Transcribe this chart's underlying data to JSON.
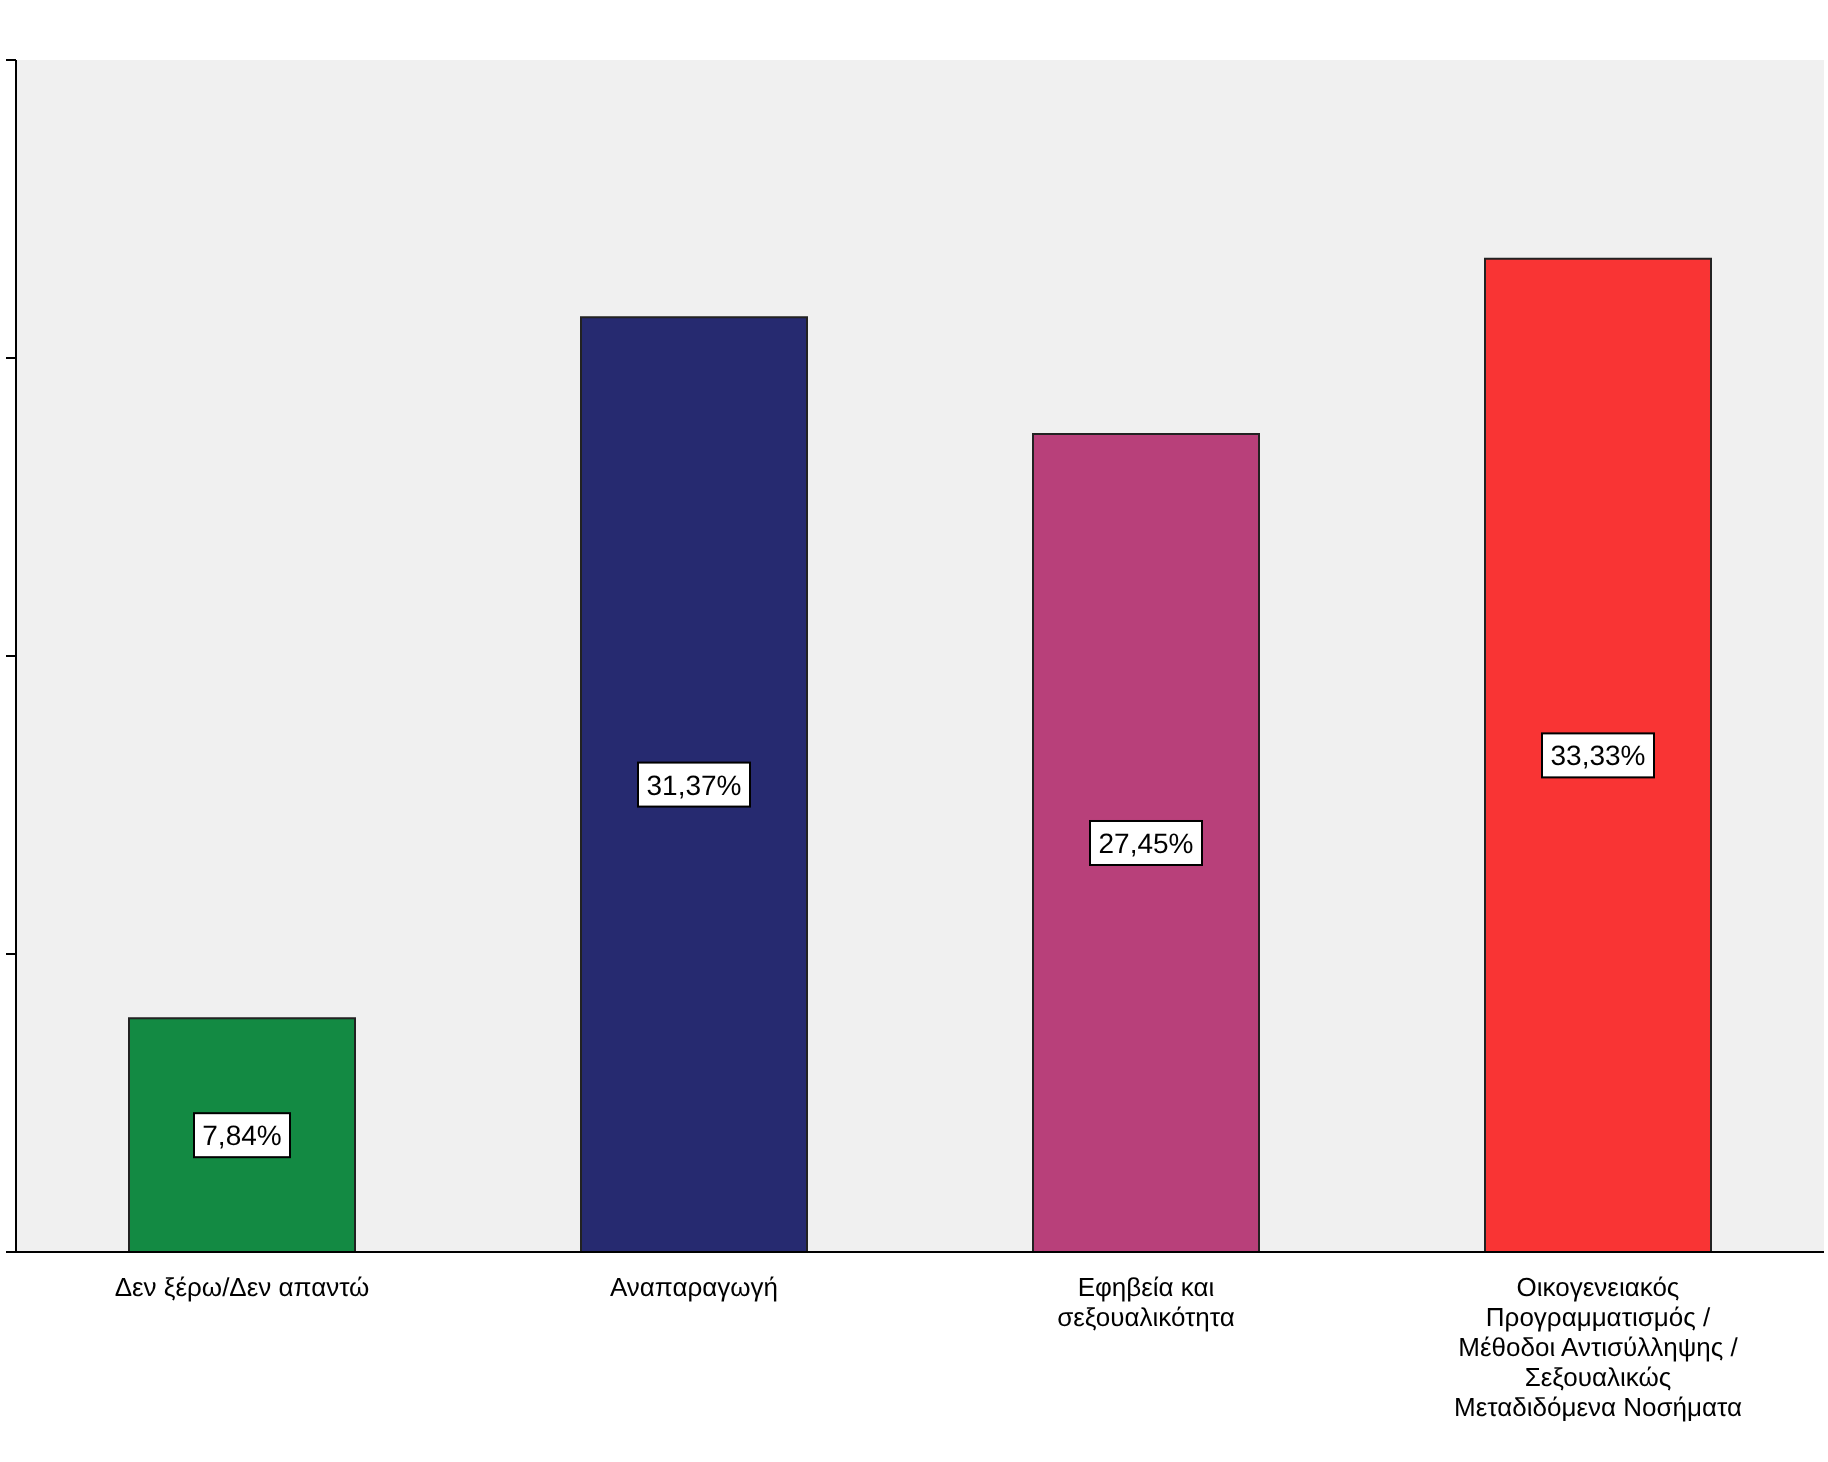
{
  "chart_data": {
    "type": "bar",
    "categories": [
      "Δεν ξέρω/Δεν απαντώ",
      "Αναπαραγωγή",
      "Εφηβεία και σεξουαλικότητα",
      "Οικογενειακός Προγραμματισμός / Μέθοδοι Αντισύλληψης / Σεξουαλικώς Μεταδιδόμενα Νοσήματα"
    ],
    "values": [
      7.84,
      31.37,
      27.45,
      33.33
    ],
    "value_labels": [
      "7,84%",
      "31,37%",
      "27,45%",
      "33,33%"
    ],
    "colors": [
      "#138a43",
      "#262a70",
      "#b8407a",
      "#f93434"
    ],
    "ylim": [
      0,
      40
    ],
    "yticks": [
      {
        "value": 0,
        "label": null
      },
      {
        "value": 10,
        "label": null
      },
      {
        "value": 20,
        "label": null
      },
      {
        "value": 30,
        "label": null
      },
      {
        "value": 40,
        "label": null
      }
    ],
    "tick_labels": "x",
    "grid": false,
    "legend": false
  }
}
